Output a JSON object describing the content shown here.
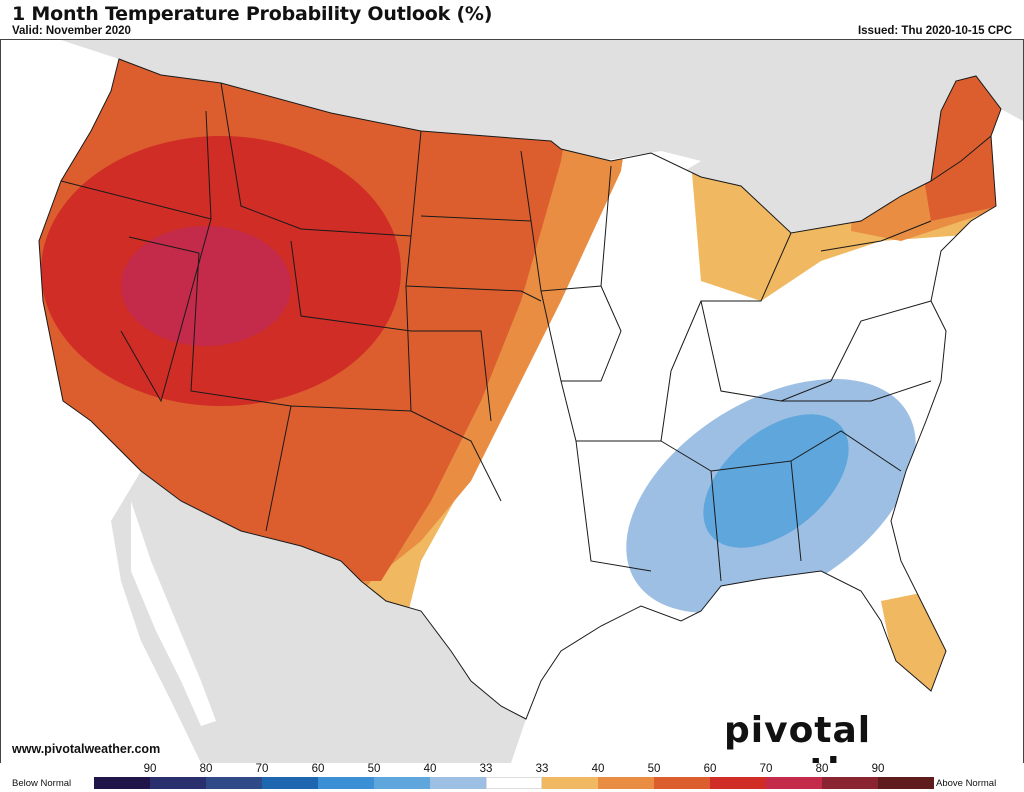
{
  "header": {
    "title": "1 Month Temperature Probability Outlook (%)",
    "valid": "Valid: November 2020",
    "issued": "Issued: Thu 2020-10-15 CPC"
  },
  "footer": {
    "website": "www.pivotalweather.com",
    "brand": "pivotal weather"
  },
  "legend": {
    "below_label": "Below Normal",
    "above_label": "Above Normal",
    "ticks": [
      "90",
      "80",
      "70",
      "60",
      "50",
      "40",
      "33",
      "33",
      "40",
      "50",
      "60",
      "70",
      "80",
      "90"
    ],
    "colors": [
      "#1f1548",
      "#2a2f6e",
      "#2f4a86",
      "#1f66b0",
      "#3b8fd4",
      "#5fa6dc",
      "#9dbfe3",
      "#ffffff",
      "#f0b860",
      "#e88d42",
      "#dc5e2e",
      "#cf2d26",
      "#c42a4a",
      "#8a2430",
      "#5e1c1c"
    ]
  },
  "map": {
    "land_color": "#e0e0e0",
    "water_color": "#ffffff",
    "categories": [
      {
        "name": "Above Normal 40",
        "color": "#f0b860"
      },
      {
        "name": "Above Normal 50",
        "color": "#e88d42"
      },
      {
        "name": "Above Normal 60",
        "color": "#dc5e2e"
      },
      {
        "name": "Above Normal 70",
        "color": "#cf2d26"
      },
      {
        "name": "Above Normal 80",
        "color": "#c42a4a"
      },
      {
        "name": "Below Normal 40",
        "color": "#9dbfe3"
      },
      {
        "name": "Below Normal 50",
        "color": "#5fa6dc"
      }
    ]
  }
}
